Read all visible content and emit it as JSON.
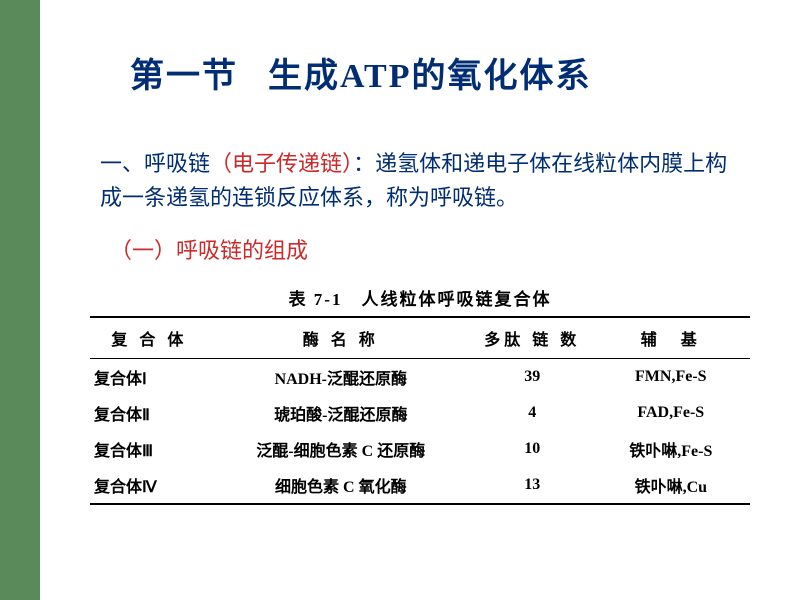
{
  "colors": {
    "sidebar": "#5a8a5a",
    "title": "#002d73",
    "bodyText": "#002d73",
    "highlight": "#cc2a2a",
    "tableText": "#000000",
    "background": "#ffffff"
  },
  "title": {
    "part1": "第一节",
    "part2": "生成ATP的氧化体系"
  },
  "paragraph": {
    "lead": "一、呼吸链",
    "paren_open": "（",
    "highlight": "电子传递链",
    "paren_close": "）",
    "rest": "：递氢体和递电子体在线粒体内膜上构成一条递氢的连锁反应体系，称为呼吸链。"
  },
  "subheading": "（一）呼吸链的组成",
  "table": {
    "caption": "表 7-1　人线粒体呼吸链复合体",
    "columns": [
      "复 合 体",
      "酶 名 称",
      "多肽 链 数",
      "辅　基"
    ],
    "rows": [
      {
        "complex": "复合体Ⅰ",
        "enzyme": "NADH-泛醌还原酶",
        "chains": "39",
        "cofactor": "FMN,Fe-S"
      },
      {
        "complex": "复合体Ⅱ",
        "enzyme": "琥珀酸-泛醌还原酶",
        "chains": "4",
        "cofactor": "FAD,Fe-S"
      },
      {
        "complex": "复合体Ⅲ",
        "enzyme": "泛醌-细胞色素 C 还原酶",
        "chains": "10",
        "cofactor": "铁卟啉,Fe-S"
      },
      {
        "complex": "复合体Ⅳ",
        "enzyme": "细胞色素 C 氧化酶",
        "chains": "13",
        "cofactor": "铁卟啉,Cu"
      }
    ]
  }
}
